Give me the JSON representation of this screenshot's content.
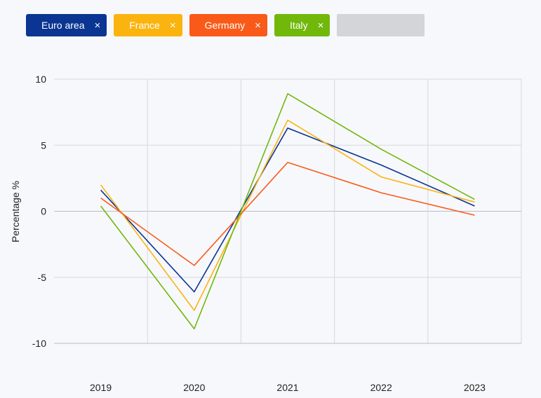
{
  "legend_chips": [
    {
      "label": "Euro area",
      "close": "×",
      "color": "#0a3592"
    },
    {
      "label": "France",
      "close": "×",
      "color": "#fbb40f"
    },
    {
      "label": "Germany",
      "close": "×",
      "color": "#fa5a19"
    },
    {
      "label": "Italy",
      "close": "×",
      "color": "#71b80b"
    }
  ],
  "chart_data": {
    "type": "line",
    "x": [
      "2019",
      "2020",
      "2021",
      "2022",
      "2023"
    ],
    "series": [
      {
        "name": "Euro area",
        "color": "#0a3592",
        "values": [
          1.6,
          -6.1,
          6.3,
          3.5,
          0.4
        ]
      },
      {
        "name": "France",
        "color": "#fbb40f",
        "values": [
          2.0,
          -7.5,
          6.9,
          2.6,
          0.7
        ]
      },
      {
        "name": "Germany",
        "color": "#fa5a19",
        "values": [
          1.0,
          -4.1,
          3.7,
          1.4,
          -0.3
        ]
      },
      {
        "name": "Italy",
        "color": "#71b80b",
        "values": [
          0.4,
          -8.9,
          8.9,
          4.7,
          0.9
        ]
      }
    ],
    "ylabel": "Percentage %",
    "ylim": [
      -10,
      10
    ],
    "yticks": [
      "10",
      "5",
      "0",
      "-5",
      "-10"
    ],
    "grid": true
  }
}
